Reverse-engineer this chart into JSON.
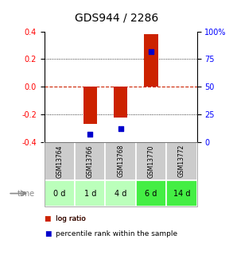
{
  "title": "GDS944 / 2286",
  "samples": [
    "GSM13764",
    "GSM13766",
    "GSM13768",
    "GSM13770",
    "GSM13772"
  ],
  "time_labels": [
    "0 d",
    "1 d",
    "4 d",
    "6 d",
    "14 d"
  ],
  "log_ratio": [
    0.0,
    -0.27,
    -0.22,
    0.38,
    0.0
  ],
  "percentile_rank": [
    null,
    7.0,
    12.0,
    82.0,
    null
  ],
  "ylim": [
    -0.4,
    0.4
  ],
  "yticks_left": [
    -0.4,
    -0.2,
    0.0,
    0.2,
    0.4
  ],
  "yticks_right": [
    0,
    25,
    50,
    75,
    100
  ],
  "bar_color": "#cc2200",
  "dot_color": "#0000cc",
  "zero_line_color": "#cc2200",
  "background_color": "#ffffff",
  "gsm_cell_color": "#cccccc",
  "time_cell_colors": [
    "#bbffbb",
    "#bbffbb",
    "#bbffbb",
    "#44ee44",
    "#44ee44"
  ],
  "legend_log_ratio_color": "#cc2200",
  "legend_percentile_color": "#0000cc",
  "title_fontsize": 10,
  "tick_fontsize": 7,
  "gsm_fontsize": 5.5,
  "time_fontsize": 7,
  "legend_fontsize": 6.5,
  "bar_width": 0.45
}
